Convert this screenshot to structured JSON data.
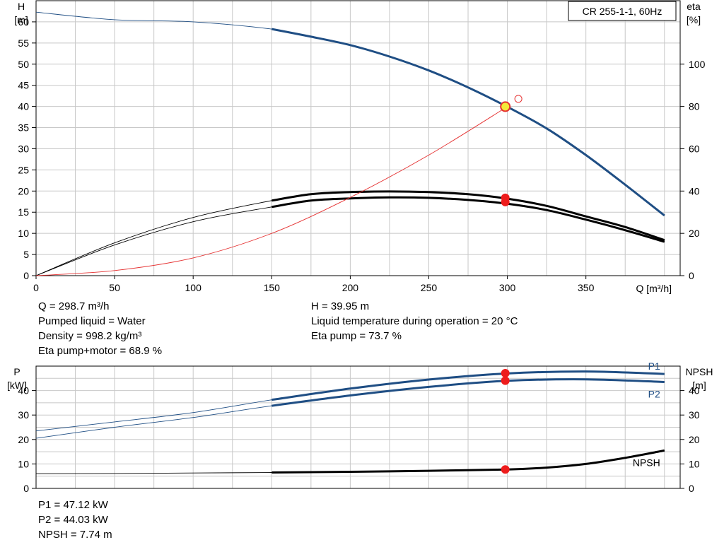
{
  "legend_box": "CR 255-1-1, 60Hz",
  "chart_data": [
    {
      "type": "line",
      "xlabel": "Q [m³/h]",
      "ylabel": [
        "H",
        "[m]"
      ],
      "y2label": [
        "eta",
        "[%]"
      ],
      "xlim": [
        0,
        410
      ],
      "ylim": [
        0,
        65
      ],
      "y2lim": [
        0,
        130
      ],
      "x_ticks": [
        0,
        50,
        100,
        150,
        200,
        250,
        300,
        350
      ],
      "y_ticks": [
        0,
        5,
        10,
        15,
        20,
        25,
        30,
        35,
        40,
        45,
        50,
        55,
        60
      ],
      "y2_ticks": [
        0,
        20,
        40,
        60,
        80,
        100
      ],
      "grid": true,
      "series": [
        {
          "axis": "y",
          "color": "#1f4e84",
          "x": [
            0,
            50,
            100,
            150,
            175,
            200,
            225,
            250,
            275,
            300,
            325,
            350,
            375,
            400
          ],
          "y": [
            62.3,
            60.5,
            60.0,
            58.3,
            56.5,
            54.5,
            51.8,
            48.5,
            44.5,
            39.9,
            34.8,
            28.5,
            21.5,
            14.2
          ],
          "visible_from": 150
        },
        {
          "axis": "y2",
          "color": "#000000",
          "x": [
            0,
            50,
            100,
            150,
            175,
            200,
            225,
            250,
            275,
            300,
            325,
            350,
            375,
            400
          ],
          "y": [
            0,
            15.5,
            27.5,
            35.5,
            38.5,
            39.5,
            39.8,
            39.5,
            38.5,
            36.4,
            33.0,
            28.0,
            23.0,
            16.8
          ],
          "visible_from": 150
        },
        {
          "axis": "y2",
          "color": "#000000",
          "x": [
            0,
            50,
            100,
            150,
            175,
            200,
            225,
            250,
            275,
            300,
            325,
            350,
            375,
            400
          ],
          "y": [
            0,
            14.5,
            25.5,
            32.5,
            35.5,
            36.5,
            37.0,
            36.8,
            35.8,
            34.0,
            31.0,
            26.5,
            21.5,
            16.0
          ],
          "visible_from": 150
        },
        {
          "axis": "y",
          "color": "#e53030",
          "thin": true,
          "x": [
            0,
            50,
            100,
            150,
            200,
            250,
            300
          ],
          "y": [
            0,
            1.2,
            4.2,
            10.0,
            18.5,
            28.5,
            39.95
          ]
        }
      ],
      "points": [
        {
          "axis": "y",
          "x": 298.7,
          "y": 39.95,
          "style": "duty"
        },
        {
          "axis": "y2",
          "x": 298.7,
          "y": 36.8,
          "style": "red"
        },
        {
          "axis": "y2",
          "x": 298.7,
          "y": 34.8,
          "style": "red"
        },
        {
          "axis": "y",
          "x": 307,
          "y": 41.8,
          "style": "open"
        }
      ]
    },
    {
      "type": "line",
      "ylabel": [
        "P",
        "[kW]"
      ],
      "y2label": [
        "NPSH",
        "[m]"
      ],
      "xlim": [
        0,
        410
      ],
      "ylim": [
        0,
        50
      ],
      "y2lim": [
        0,
        50
      ],
      "y_ticks": [
        0,
        10,
        20,
        30,
        40
      ],
      "y2_ticks": [
        0,
        10,
        20,
        30,
        40
      ],
      "grid": true,
      "series": [
        {
          "name": "P1",
          "axis": "y",
          "color": "#1f4e84",
          "x": [
            0,
            50,
            100,
            150,
            200,
            250,
            300,
            350,
            400
          ],
          "y": [
            23.5,
            27.2,
            31.0,
            36.2,
            40.8,
            44.5,
            47.0,
            47.8,
            46.8
          ],
          "visible_from": 150
        },
        {
          "name": "P2",
          "axis": "y",
          "color": "#1f4e84",
          "x": [
            0,
            50,
            100,
            150,
            200,
            250,
            300,
            350,
            400
          ],
          "y": [
            20.5,
            25.0,
            29.0,
            33.8,
            38.0,
            41.5,
            44.0,
            44.6,
            43.5
          ],
          "visible_from": 150
        },
        {
          "name": "NPSH",
          "axis": "y2",
          "color": "#000000",
          "x": [
            0,
            50,
            100,
            150,
            200,
            250,
            300,
            325,
            350,
            375,
            400
          ],
          "y": [
            6.0,
            6.1,
            6.3,
            6.5,
            6.8,
            7.2,
            7.74,
            8.5,
            10.0,
            12.5,
            15.5
          ],
          "visible_from": 150
        }
      ],
      "points": [
        {
          "axis": "y",
          "x": 298.7,
          "y": 47.12,
          "style": "red"
        },
        {
          "axis": "y",
          "x": 298.7,
          "y": 44.03,
          "style": "red"
        },
        {
          "axis": "y2",
          "x": 298.7,
          "y": 7.74,
          "style": "red"
        }
      ]
    }
  ],
  "duty_info": {
    "left": [
      "Q = 298.7 m³/h",
      "Pumped liquid = Water",
      "Density = 998.2 kg/m³",
      "Eta pump+motor = 68.9 %"
    ],
    "right": [
      "H = 39.95 m",
      "Liquid temperature during operation = 20 °C",
      "Eta pump = 73.7 %"
    ]
  },
  "power_info": [
    "P1 = 47.12 kW",
    "P2 = 44.03 kW",
    "NPSH = 7.74 m"
  ]
}
